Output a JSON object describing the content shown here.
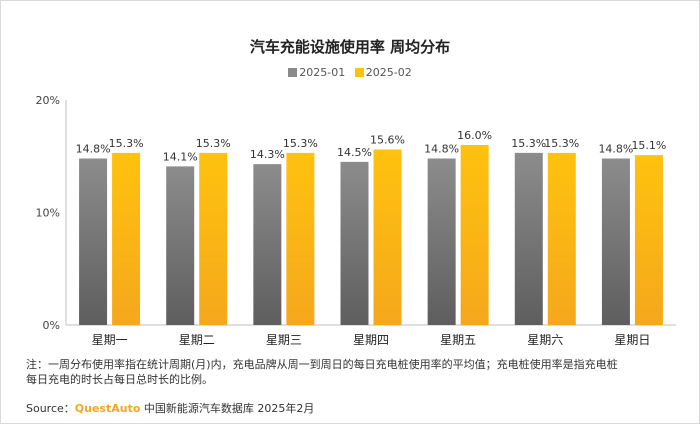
{
  "title": "汽车充能设施使用率 周均分布",
  "colors": {
    "series1": "#8a8a8a",
    "series2": "#ffc20e",
    "grid": "#d9d9d9",
    "brand": "#f5a623"
  },
  "note_line1": "注：一周分布使用率指在统计周期(月)内，充电品牌从周一到周日的每日充电桩使用率的平均值；充电桩使用率是指充电桩",
  "note_line2": "每日充电的时长占每日总时长的比例。",
  "source": {
    "prefix": "Source：",
    "brand": "QuestAuto",
    "text": " 中国新能源汽车数据库 2025年2月"
  },
  "chart_data": {
    "type": "bar",
    "title": "汽车充能设施使用率 周均分布",
    "categories": [
      "星期一",
      "星期二",
      "星期三",
      "星期四",
      "星期五",
      "星期六",
      "星期日"
    ],
    "series": [
      {
        "name": "2025-01",
        "values": [
          14.8,
          14.1,
          14.3,
          14.5,
          14.8,
          15.3,
          14.8
        ],
        "labels": [
          "14.8%",
          "14.1%",
          "14.3%",
          "14.5%",
          "14.8%",
          "15.3%",
          "14.8%"
        ]
      },
      {
        "name": "2025-02",
        "values": [
          15.3,
          15.3,
          15.3,
          15.6,
          16.0,
          15.3,
          15.1
        ],
        "labels": [
          "15.3%",
          "15.3%",
          "15.3%",
          "15.6%",
          "16.0%",
          "15.3%",
          "15.1%"
        ]
      }
    ],
    "yticks": [
      "0%",
      "10%",
      "20%"
    ],
    "ylim": [
      0,
      20
    ],
    "grid": false,
    "legend_position": "top-center"
  }
}
